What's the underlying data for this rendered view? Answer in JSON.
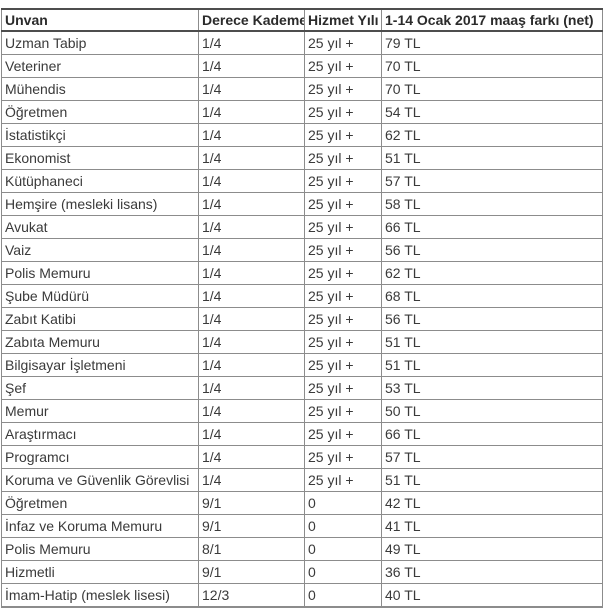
{
  "chart_data": {
    "type": "table",
    "columns": [
      "Unvan",
      "Derece Kademe",
      "Hizmet Yılı",
      "1-14 Ocak 2017 maaş farkı (net)"
    ],
    "rows": [
      [
        "Uzman Tabip",
        "1/4",
        "25 yıl +",
        "79 TL"
      ],
      [
        "Veteriner",
        "1/4",
        "25 yıl +",
        "70 TL"
      ],
      [
        "Mühendis",
        "1/4",
        "25 yıl +",
        "70 TL"
      ],
      [
        "Öğretmen",
        "1/4",
        "25 yıl +",
        "54 TL"
      ],
      [
        "İstatistikçi",
        "1/4",
        "25 yıl +",
        "62 TL"
      ],
      [
        "Ekonomist",
        "1/4",
        "25 yıl +",
        "51 TL"
      ],
      [
        "Kütüphaneci",
        "1/4",
        "25 yıl +",
        "57 TL"
      ],
      [
        "Hemşire (mesleki lisans)",
        "1/4",
        "25 yıl +",
        "58 TL"
      ],
      [
        "Avukat",
        "1/4",
        "25 yıl +",
        "66 TL"
      ],
      [
        "Vaiz",
        "1/4",
        "25 yıl +",
        "56 TL"
      ],
      [
        "Polis Memuru",
        "1/4",
        "25 yıl +",
        "62 TL"
      ],
      [
        "Şube Müdürü",
        "1/4",
        "25 yıl +",
        "68 TL"
      ],
      [
        "Zabıt Katibi",
        "1/4",
        "25 yıl +",
        "56 TL"
      ],
      [
        "Zabıta Memuru",
        "1/4",
        "25 yıl +",
        "51 TL"
      ],
      [
        "Bilgisayar İşletmeni",
        "1/4",
        "25 yıl +",
        "51 TL"
      ],
      [
        "Şef",
        "1/4",
        "25 yıl +",
        "53 TL"
      ],
      [
        "Memur",
        "1/4",
        "25 yıl +",
        "50 TL"
      ],
      [
        "Araştırmacı",
        "1/4",
        "25 yıl +",
        "66 TL"
      ],
      [
        "Programcı",
        "1/4",
        "25 yıl +",
        "57 TL"
      ],
      [
        "Koruma ve Güvenlik Görevlisi",
        "1/4",
        "25 yıl +",
        "51 TL"
      ],
      [
        "Öğretmen",
        "9/1",
        "0",
        "42 TL"
      ],
      [
        "İnfaz ve Koruma Memuru",
        "9/1",
        "0",
        "41 TL"
      ],
      [
        "Polis Memuru",
        "8/1",
        "0",
        "49 TL"
      ],
      [
        "Hizmetli",
        "9/1",
        "0",
        "36 TL"
      ],
      [
        "İmam-Hatip (meslek lisesi)",
        "12/3",
        "0",
        "40 TL"
      ]
    ],
    "layout": {
      "grid": "on",
      "header_row": true
    }
  },
  "colors": {
    "background": "#ffffff",
    "text": "#3a3a3a",
    "header_text": "#2b2b2b",
    "grid_border": "#8c8c8c",
    "header_border": "#4d4d4d"
  }
}
